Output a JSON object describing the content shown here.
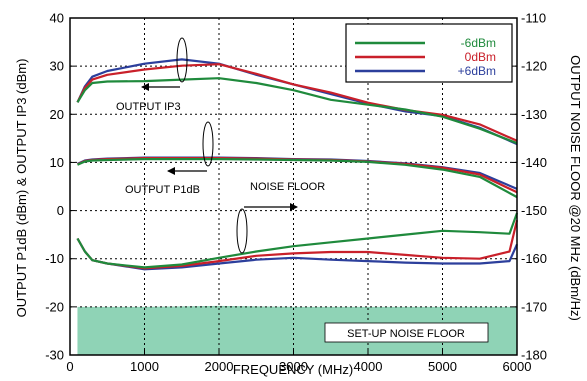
{
  "chart_data": {
    "type": "line",
    "xlabel": "FREQUENCY (MHz)",
    "ylabel_left": "OUTPUT P1dB (dBm) & OUTPUT IP3 (dBm)",
    "ylabel_right": "OUTPUT NOISE FLOOR @20 MHz (dBm/Hz)",
    "xlim": [
      0,
      6000
    ],
    "ylim_left": [
      -30,
      40
    ],
    "ylim_right": [
      -180,
      -110
    ],
    "xticks": [
      "0",
      "1000",
      "2000",
      "3000",
      "4000",
      "5000",
      "6000"
    ],
    "xtick_values": [
      0,
      1000,
      2000,
      3000,
      4000,
      5000,
      6000
    ],
    "yticks_left": [
      "40",
      "30",
      "20",
      "10",
      "0",
      "-10",
      "-20",
      "-30"
    ],
    "ytick_left_values": [
      40,
      30,
      20,
      10,
      0,
      -10,
      -20,
      -30
    ],
    "yticks_right": [
      "-110",
      "-120",
      "-130",
      "-140",
      "-150",
      "-160",
      "-170",
      "-180"
    ],
    "ytick_right_values": [
      -110,
      -120,
      -130,
      -140,
      -150,
      -160,
      -170,
      -180
    ],
    "grid": "dotted",
    "legend_position": "top-right",
    "colors": {
      "-6dBm": "#1f8a3c",
      "0dBm": "#c9202a",
      "+6dBm": "#2c3f9c",
      "setup_floor": "#8fd3b6"
    },
    "series": [
      {
        "name": "-6dBm",
        "group": "OUTPUT IP3",
        "x": [
          100,
          200,
          300,
          500,
          1000,
          1500,
          2000,
          2500,
          3000,
          3500,
          4000,
          4500,
          5000,
          5500,
          6000
        ],
        "y": [
          22.5,
          25,
          26.5,
          26.8,
          26.9,
          27.2,
          27.5,
          26.5,
          25,
          23,
          22,
          21,
          19.5,
          17,
          14
        ]
      },
      {
        "name": "0dBm",
        "group": "OUTPUT IP3",
        "x": [
          100,
          200,
          300,
          500,
          1000,
          1500,
          2000,
          2500,
          3000,
          3500,
          4000,
          4500,
          5000,
          5500,
          6000
        ],
        "y": [
          22.5,
          25.5,
          27.2,
          28.2,
          29.3,
          30.1,
          30.4,
          28.4,
          26.2,
          24.5,
          22.4,
          20.9,
          19.9,
          17.9,
          14.5
        ]
      },
      {
        "name": "+6dBm",
        "group": "OUTPUT IP3",
        "x": [
          100,
          200,
          300,
          500,
          1000,
          1500,
          2000,
          2500,
          3000,
          3500,
          4000,
          4500,
          5000,
          5500,
          6000
        ],
        "y": [
          22.5,
          25.8,
          27.8,
          29,
          30.5,
          31.4,
          30.5,
          28.2,
          26.2,
          24.2,
          22.2,
          20.6,
          19.6,
          17.2,
          13.8
        ]
      },
      {
        "name": "-6dBm",
        "group": "OUTPUT P1dB",
        "x": [
          100,
          200,
          300,
          500,
          1000,
          1500,
          2000,
          2500,
          3000,
          3500,
          4000,
          4500,
          5000,
          5500,
          6000
        ],
        "y": [
          9.5,
          10.2,
          10.4,
          10.5,
          10.7,
          10.7,
          10.7,
          10.6,
          10.5,
          10.4,
          10.1,
          9.5,
          8.5,
          7,
          2.8
        ]
      },
      {
        "name": "0dBm",
        "group": "OUTPUT P1dB",
        "x": [
          100,
          200,
          300,
          500,
          1000,
          1500,
          2000,
          2500,
          3000,
          3500,
          4000,
          4500,
          5000,
          5500,
          6000
        ],
        "y": [
          9.6,
          10.3,
          10.5,
          10.7,
          10.9,
          10.9,
          10.9,
          10.8,
          10.6,
          10.5,
          10.2,
          9.7,
          8.9,
          7.5,
          3.8
        ]
      },
      {
        "name": "+6dBm",
        "group": "OUTPUT P1dB",
        "x": [
          100,
          200,
          300,
          500,
          1000,
          1500,
          2000,
          2500,
          3000,
          3500,
          4000,
          4500,
          5000,
          5500,
          6000
        ],
        "y": [
          9.7,
          10.4,
          10.6,
          10.8,
          11.0,
          11.0,
          11.0,
          10.9,
          10.7,
          10.6,
          10.3,
          9.8,
          9.0,
          7.8,
          4.5
        ]
      },
      {
        "name": "-6dBm",
        "group": "NOISE FLOOR",
        "x": [
          100,
          200,
          300,
          500,
          1000,
          1500,
          2000,
          2500,
          3000,
          3500,
          4000,
          4500,
          5000,
          5500,
          5900,
          6000
        ],
        "y": [
          -155.8,
          -158.5,
          -160.3,
          -161,
          -161.8,
          -161.2,
          -159.8,
          -158.5,
          -157.4,
          -156.6,
          -155.8,
          -155,
          -154.2,
          -154.5,
          -154.8,
          -150.5
        ]
      },
      {
        "name": "0dBm",
        "group": "NOISE FLOOR",
        "x": [
          100,
          200,
          300,
          500,
          1000,
          1500,
          2000,
          2500,
          3000,
          3500,
          4000,
          4500,
          5000,
          5500,
          5900,
          6000
        ],
        "y": [
          -155.8,
          -158.5,
          -160.3,
          -161,
          -162,
          -161.5,
          -160.5,
          -159.4,
          -158.9,
          -158.6,
          -158.6,
          -159.2,
          -159.8,
          -160,
          -158.5,
          -152
        ]
      },
      {
        "name": "+6dBm",
        "group": "NOISE FLOOR",
        "x": [
          100,
          200,
          300,
          500,
          1000,
          1500,
          2000,
          2500,
          3000,
          3500,
          4000,
          4500,
          5000,
          5500,
          5900,
          6000
        ],
        "y": [
          -155.8,
          -158.5,
          -160.3,
          -161,
          -162.2,
          -161.8,
          -161,
          -160.2,
          -159.8,
          -160.2,
          -160.5,
          -160.8,
          -161,
          -161,
          -160.5,
          -157
        ]
      }
    ],
    "setup_floor": {
      "x": [
        100,
        1000,
        2000,
        3000,
        4000,
        5000,
        6000
      ],
      "y_top": [
        -170,
        -170,
        -169.8,
        -170,
        -170,
        -170,
        -170
      ]
    },
    "annotations": {
      "ip3": "OUTPUT IP3",
      "p1db": "OUTPUT P1dB",
      "noise": "NOISE FLOOR",
      "setup": "SET-UP NOISE FLOOR"
    }
  }
}
